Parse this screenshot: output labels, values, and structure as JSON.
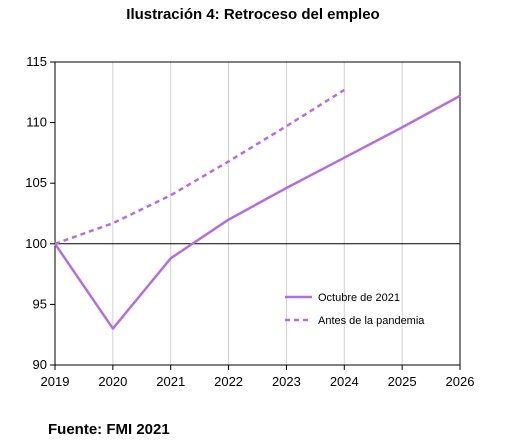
{
  "title": "Ilustración 4: Retroceso del empleo",
  "source": "Fuente: FMI 2021",
  "chart_data": {
    "type": "line",
    "title": "",
    "xlabel": "",
    "ylabel": "",
    "xlim": [
      2019,
      2026
    ],
    "ylim": [
      90,
      115
    ],
    "x_ticks": [
      "2019",
      "2020",
      "2021",
      "2022",
      "2023",
      "2024",
      "2025",
      "2026"
    ],
    "y_ticks": [
      "90",
      "95",
      "100",
      "105",
      "110",
      "115"
    ],
    "reference_line": 100,
    "grid": "vertical",
    "legend_position": "bottom-right",
    "series": [
      {
        "name": "Octubre de 2021",
        "style": "solid",
        "color": "#b36fe0",
        "x": [
          2019,
          2020,
          2021,
          2022,
          2023,
          2024,
          2025,
          2026
        ],
        "y": [
          100,
          93,
          98.8,
          102,
          104.6,
          107.1,
          109.6,
          112.2
        ]
      },
      {
        "name": "Antes de la pandemia",
        "style": "dashed",
        "color": "#b36fe0",
        "x": [
          2019,
          2020,
          2021,
          2022,
          2023,
          2024
        ],
        "y": [
          100,
          101.7,
          104,
          106.8,
          109.7,
          112.7
        ]
      }
    ]
  }
}
